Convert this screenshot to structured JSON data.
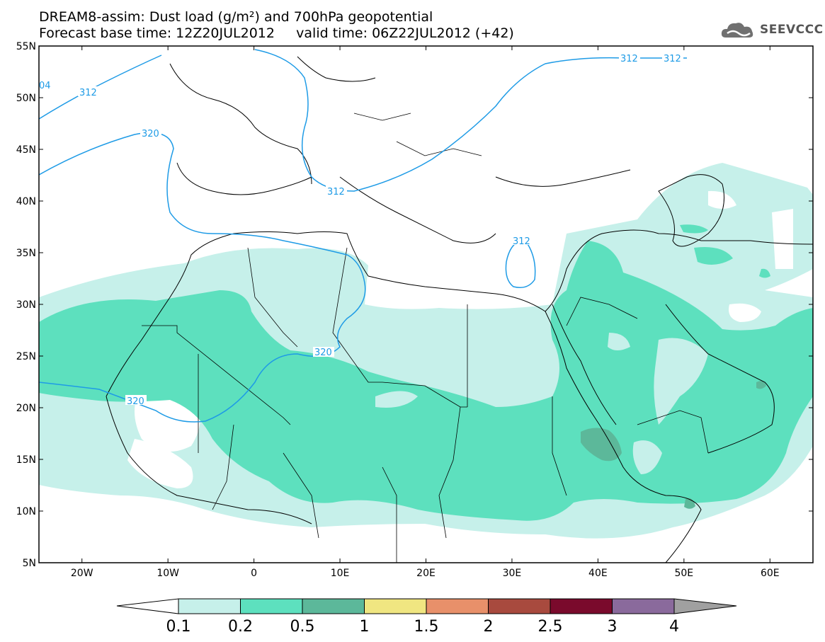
{
  "title": {
    "line1": "DREAM8-assim: Dust load (g/m²) and 700hPa geopotential",
    "line2": "Forecast base time: 12Z20JUL2012     valid time: 06Z22JUL2012 (+42)"
  },
  "logo": {
    "text": "SEEVCCC",
    "icon": "cloud-icon"
  },
  "map": {
    "lat_labels": [
      "55N",
      "50N",
      "45N",
      "40N",
      "35N",
      "30N",
      "25N",
      "20N",
      "15N",
      "10N",
      "5N"
    ],
    "lon_labels": [
      "20W",
      "10W",
      "0",
      "10E",
      "20E",
      "30E",
      "40E",
      "50E",
      "60E"
    ],
    "lon_range": [
      -25,
      65
    ],
    "lat_range": [
      5,
      55
    ],
    "contour_labels": [
      "312",
      "312",
      "312",
      "312",
      "312",
      "320",
      "320",
      "320",
      "04"
    ]
  },
  "colorbar": {
    "labels": [
      "0.1",
      "0.2",
      "0.5",
      "1",
      "1.5",
      "2",
      "2.5",
      "3",
      "4"
    ],
    "colors": [
      "#c6f0ea",
      "#5de0be",
      "#5cb89a",
      "#f0e681",
      "#e8906a",
      "#a84a3e",
      "#7a0a2c",
      "#8a6a9c",
      "#a0a0a0"
    ]
  },
  "colors": {
    "light_dust": "#c6f0ea",
    "mid_dust": "#5de0be",
    "dark_dust": "#5cb89a",
    "contour": "#1e9be6"
  }
}
